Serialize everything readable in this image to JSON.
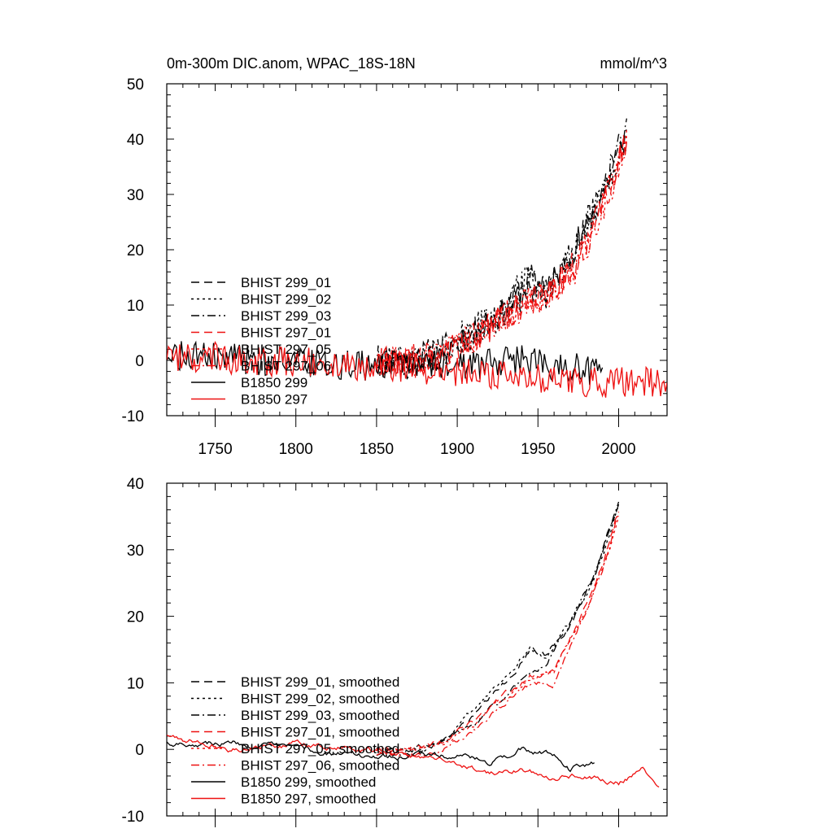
{
  "colors": {
    "black": "#000000",
    "red": "#ee1111"
  },
  "chart_data": [
    {
      "type": "line",
      "title": "0m-300m DIC.anom, WPAC_18S-18N",
      "units": "mmol/m^3",
      "xlim": [
        1720,
        2030
      ],
      "ylim": [
        -10,
        50
      ],
      "xticks": [
        1750,
        1800,
        1850,
        1900,
        1950,
        2000
      ],
      "yticks": [
        -10,
        0,
        10,
        20,
        30,
        40,
        50
      ],
      "show_xtick_labels": true,
      "grid": false,
      "legend_position": "lower-left",
      "noise": 2.8,
      "series": [
        {
          "name": "BHIST 299_01",
          "color": "black",
          "dash": "dash",
          "x_start": 1850,
          "x_end": 2005,
          "points": [
            [
              1850,
              0
            ],
            [
              1870,
              0
            ],
            [
              1890,
              2
            ],
            [
              1910,
              5
            ],
            [
              1930,
              9
            ],
            [
              1945,
              15
            ],
            [
              1955,
              12
            ],
            [
              1970,
              19
            ],
            [
              1980,
              24
            ],
            [
              1990,
              30
            ],
            [
              2005,
              41
            ]
          ]
        },
        {
          "name": "BHIST 299_02",
          "color": "black",
          "dash": "dot",
          "x_start": 1850,
          "x_end": 2005,
          "points": [
            [
              1850,
              0
            ],
            [
              1870,
              0
            ],
            [
              1890,
              2
            ],
            [
              1910,
              6
            ],
            [
              1930,
              10
            ],
            [
              1945,
              16
            ],
            [
              1955,
              12
            ],
            [
              1970,
              19
            ],
            [
              1980,
              24
            ],
            [
              1990,
              30
            ],
            [
              2005,
              40
            ]
          ]
        },
        {
          "name": "BHIST 299_03",
          "color": "black",
          "dash": "dashdot",
          "x_start": 1850,
          "x_end": 2005,
          "points": [
            [
              1850,
              0
            ],
            [
              1870,
              -1
            ],
            [
              1890,
              1
            ],
            [
              1910,
              5
            ],
            [
              1930,
              9
            ],
            [
              1945,
              13
            ],
            [
              1955,
              13
            ],
            [
              1970,
              19
            ],
            [
              1980,
              25
            ],
            [
              1990,
              31
            ],
            [
              2005,
              42
            ]
          ]
        },
        {
          "name": "BHIST 297_01",
          "color": "red",
          "dash": "dash",
          "x_start": 1850,
          "x_end": 2005,
          "points": [
            [
              1850,
              0
            ],
            [
              1870,
              0
            ],
            [
              1890,
              1
            ],
            [
              1910,
              4
            ],
            [
              1930,
              8
            ],
            [
              1945,
              11
            ],
            [
              1960,
              13
            ],
            [
              1975,
              18
            ],
            [
              1990,
              28
            ],
            [
              2005,
              40
            ]
          ]
        },
        {
          "name": "BHIST 297_05",
          "color": "red",
          "dash": "dot",
          "x_start": 1850,
          "x_end": 2005,
          "points": [
            [
              1850,
              0
            ],
            [
              1870,
              0
            ],
            [
              1890,
              1
            ],
            [
              1910,
              4
            ],
            [
              1930,
              8
            ],
            [
              1945,
              11
            ],
            [
              1960,
              12
            ],
            [
              1975,
              17
            ],
            [
              1990,
              27
            ],
            [
              2005,
              39
            ]
          ]
        },
        {
          "name": "BHIST 297_06",
          "color": "red",
          "dash": "dashdot",
          "x_start": 1850,
          "x_end": 2005,
          "points": [
            [
              1850,
              0
            ],
            [
              1870,
              -1
            ],
            [
              1890,
              1
            ],
            [
              1910,
              4
            ],
            [
              1930,
              8
            ],
            [
              1945,
              10
            ],
            [
              1960,
              13
            ],
            [
              1975,
              18
            ],
            [
              1990,
              28
            ],
            [
              2005,
              40
            ]
          ]
        },
        {
          "name": "B1850 299",
          "color": "black",
          "dash": "solid",
          "x_start": 1720,
          "x_end": 1990,
          "points": [
            [
              1720,
              1
            ],
            [
              1780,
              0
            ],
            [
              1820,
              -1
            ],
            [
              1860,
              -1
            ],
            [
              1900,
              -1
            ],
            [
              1940,
              0
            ],
            [
              1960,
              -1
            ],
            [
              1990,
              -2
            ]
          ]
        },
        {
          "name": "B1850 297",
          "color": "red",
          "dash": "solid",
          "x_start": 1720,
          "x_end": 2030,
          "points": [
            [
              1720,
              1
            ],
            [
              1780,
              0
            ],
            [
              1850,
              -1
            ],
            [
              1900,
              -2
            ],
            [
              1940,
              -3
            ],
            [
              1980,
              -4
            ],
            [
              2030,
              -4
            ]
          ]
        }
      ]
    },
    {
      "type": "line",
      "title": "",
      "units": "",
      "xlim": [
        1720,
        2030
      ],
      "ylim": [
        -10,
        40
      ],
      "xticks": [
        1750,
        1800,
        1850,
        1900,
        1950,
        2000
      ],
      "yticks": [
        -10,
        0,
        10,
        20,
        30,
        40
      ],
      "show_xtick_labels": false,
      "grid": false,
      "legend_position": "lower-left",
      "noise": 0.5,
      "series": [
        {
          "name": "BHIST 299_01, smoothed",
          "color": "black",
          "dash": "dash",
          "x_start": 1850,
          "x_end": 2000,
          "points": [
            [
              1850,
              0
            ],
            [
              1870,
              0
            ],
            [
              1890,
              1
            ],
            [
              1910,
              5
            ],
            [
              1930,
              10
            ],
            [
              1945,
              15
            ],
            [
              1955,
              14
            ],
            [
              1970,
              19
            ],
            [
              1985,
              26
            ],
            [
              2000,
              37
            ]
          ]
        },
        {
          "name": "BHIST 299_02, smoothed",
          "color": "black",
          "dash": "dot",
          "x_start": 1850,
          "x_end": 2000,
          "points": [
            [
              1850,
              0
            ],
            [
              1870,
              0
            ],
            [
              1890,
              1
            ],
            [
              1910,
              6
            ],
            [
              1930,
              11
            ],
            [
              1945,
              15
            ],
            [
              1955,
              14
            ],
            [
              1970,
              19
            ],
            [
              1985,
              26
            ],
            [
              2000,
              36
            ]
          ]
        },
        {
          "name": "BHIST 299_03, smoothed",
          "color": "black",
          "dash": "dashdot",
          "x_start": 1850,
          "x_end": 2000,
          "points": [
            [
              1850,
              -1
            ],
            [
              1870,
              -1
            ],
            [
              1890,
              1
            ],
            [
              1910,
              4
            ],
            [
              1930,
              8
            ],
            [
              1945,
              11
            ],
            [
              1955,
              13
            ],
            [
              1970,
              19
            ],
            [
              1985,
              26
            ],
            [
              2000,
              37
            ]
          ]
        },
        {
          "name": "BHIST 297_01, smoothed",
          "color": "red",
          "dash": "dash",
          "x_start": 1850,
          "x_end": 2000,
          "points": [
            [
              1850,
              0
            ],
            [
              1870,
              0
            ],
            [
              1890,
              1
            ],
            [
              1910,
              4
            ],
            [
              1930,
              8
            ],
            [
              1945,
              11
            ],
            [
              1960,
              12
            ],
            [
              1975,
              19
            ],
            [
              1990,
              28
            ],
            [
              2000,
              36
            ]
          ]
        },
        {
          "name": "BHIST 297_05, smoothed",
          "color": "red",
          "dash": "dot",
          "x_start": 1850,
          "x_end": 2000,
          "points": [
            [
              1850,
              0
            ],
            [
              1870,
              0
            ],
            [
              1890,
              1
            ],
            [
              1910,
              4
            ],
            [
              1930,
              8
            ],
            [
              1945,
              11
            ],
            [
              1960,
              12
            ],
            [
              1975,
              18
            ],
            [
              1990,
              27
            ],
            [
              2000,
              35
            ]
          ]
        },
        {
          "name": "BHIST 297_06, smoothed",
          "color": "red",
          "dash": "dashdot",
          "x_start": 1850,
          "x_end": 2000,
          "points": [
            [
              1850,
              -1
            ],
            [
              1870,
              -1
            ],
            [
              1890,
              0
            ],
            [
              1910,
              3
            ],
            [
              1930,
              7
            ],
            [
              1945,
              10
            ],
            [
              1960,
              10
            ],
            [
              1975,
              18
            ],
            [
              1990,
              27
            ],
            [
              2000,
              36
            ]
          ]
        },
        {
          "name": "B1850 299, smoothed",
          "color": "black",
          "dash": "solid",
          "x_start": 1720,
          "x_end": 1985,
          "points": [
            [
              1720,
              1
            ],
            [
              1760,
              1
            ],
            [
              1800,
              0
            ],
            [
              1840,
              -1
            ],
            [
              1870,
              -1
            ],
            [
              1900,
              -1
            ],
            [
              1920,
              -2
            ],
            [
              1940,
              0
            ],
            [
              1960,
              -1
            ],
            [
              1970,
              -3
            ],
            [
              1985,
              -2
            ]
          ]
        },
        {
          "name": "B1850 297, smoothed",
          "color": "red",
          "dash": "solid",
          "x_start": 1720,
          "x_end": 2025,
          "points": [
            [
              1720,
              2
            ],
            [
              1760,
              0
            ],
            [
              1800,
              1
            ],
            [
              1840,
              0
            ],
            [
              1870,
              -1
            ],
            [
              1900,
              -2
            ],
            [
              1920,
              -4
            ],
            [
              1940,
              -3
            ],
            [
              1960,
              -4
            ],
            [
              1980,
              -4
            ],
            [
              2000,
              -5
            ],
            [
              2015,
              -3
            ],
            [
              2025,
              -5
            ]
          ]
        }
      ]
    }
  ]
}
